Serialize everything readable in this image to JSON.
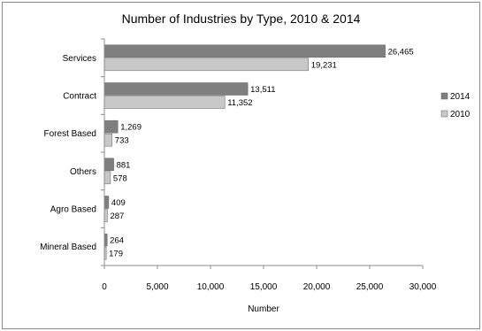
{
  "chart_data": {
    "type": "bar",
    "orientation": "horizontal",
    "title": "Number of Industries by Type, 2010 & 2014",
    "xlabel": "Number",
    "ylabel": "",
    "categories": [
      "Services",
      "Contract",
      "Forest Based",
      "Others",
      "Agro Based",
      "Mineral Based"
    ],
    "series": [
      {
        "name": "2014",
        "values": [
          26465,
          13511,
          1269,
          881,
          409,
          264
        ],
        "labels": [
          "26,465",
          "13,511",
          "1,269",
          "881",
          "409",
          "264"
        ],
        "color": "#7f7f7f"
      },
      {
        "name": "2010",
        "values": [
          19231,
          11352,
          733,
          578,
          287,
          179
        ],
        "labels": [
          "19,231",
          "11,352",
          "733",
          "578",
          "287",
          "179"
        ],
        "color": "#c8c8c8"
      }
    ],
    "xlim": [
      0,
      30000
    ],
    "xticks": [
      0,
      5000,
      10000,
      15000,
      20000,
      25000,
      30000
    ],
    "xtick_labels": [
      "0",
      "5,000",
      "10,000",
      "15,000",
      "20,000",
      "25,000",
      "30,000"
    ],
    "grid": false,
    "legend_position": "right"
  }
}
